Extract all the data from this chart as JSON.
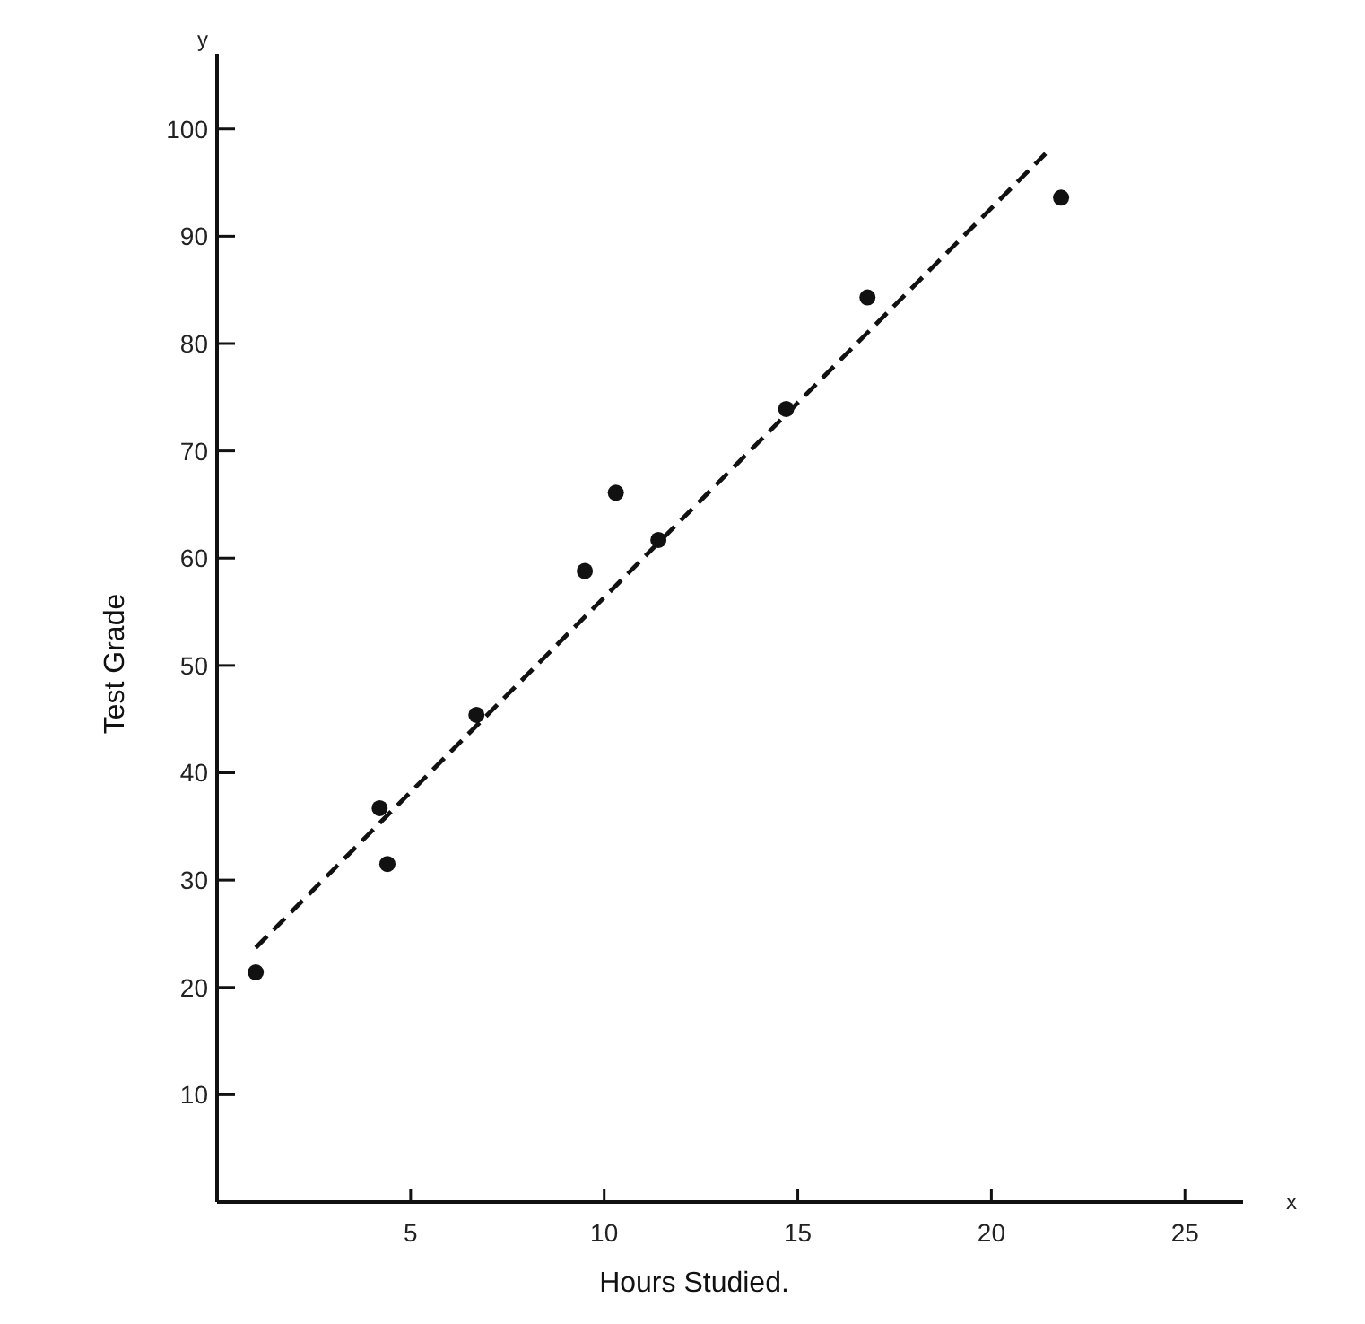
{
  "chart_data": {
    "type": "scatter",
    "xlabel": "Hours Studied.",
    "ylabel": "Test Grade",
    "annotations": [
      "y",
      "x"
    ],
    "xlim": [
      0,
      26.5
    ],
    "ylim": [
      0,
      107
    ],
    "xticks": [
      5,
      10,
      15,
      20,
      25
    ],
    "yticks": [
      10,
      20,
      30,
      40,
      50,
      60,
      70,
      80,
      90,
      100
    ],
    "grid": false,
    "series": [
      {
        "color": "#111111",
        "marker": "circle",
        "x": [
          1,
          4.2,
          4.4,
          6.7,
          9.5,
          10.3,
          11.4,
          14.7,
          16.8,
          21.8
        ],
        "values": [
          21.4,
          36.7,
          31.5,
          45.4,
          58.8,
          66.1,
          61.7,
          73.9,
          84.3,
          93.6
        ]
      },
      {
        "type": "line",
        "color": "#111111",
        "line_style": "dashed",
        "x": [
          1,
          21.4
        ],
        "values": [
          23.7,
          97.7
        ]
      }
    ]
  }
}
